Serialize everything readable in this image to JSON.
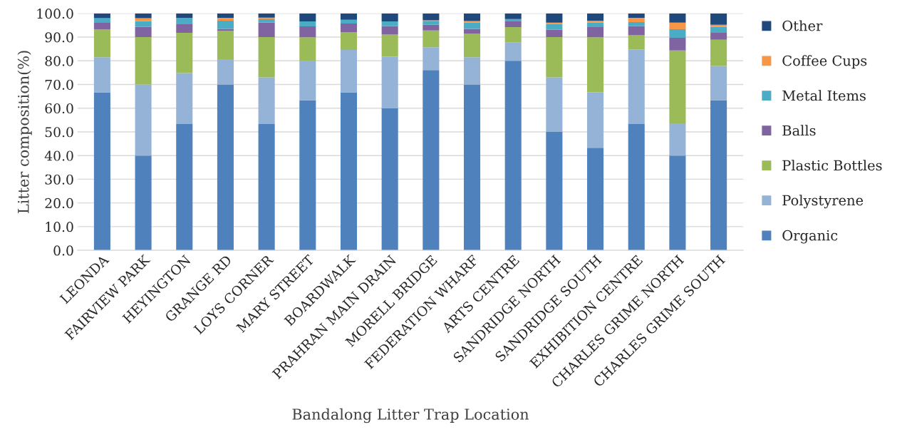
{
  "chart_data": {
    "type": "bar",
    "stacked": true,
    "xlabel": "Bandalong Litter Trap Location",
    "ylabel": "Litter composition(%)",
    "categories": [
      "LEONDA",
      "FAIRVIEW PARK",
      "HEYINGTON",
      "GRANGE RD",
      "LOYS CORNER",
      "MARY STREET",
      "BOARDWALK",
      "PRAHRAN MAIN DRAIN",
      "MORELL BRIDGE",
      "FEDERATION WHARF",
      "ARTS CENTRE",
      "SANDRIDGE NORTH",
      "SANDRIDGE SOUTH",
      "EXHIBITION CENTRE",
      "CHARLES GRIME NORTH",
      "CHARLES GRIME SOUTH"
    ],
    "series": [
      {
        "name": "Organic",
        "color": "#4f81bd",
        "values": [
          66.7,
          40,
          53.3,
          70,
          53.3,
          63.4,
          66.7,
          60,
          76.1,
          70,
          80,
          50,
          43.3,
          53.3,
          40,
          63.4
        ]
      },
      {
        "name": "Polystyrene",
        "color": "#95b3d7",
        "values": [
          14.8,
          30,
          21.5,
          10.7,
          19.7,
          16.7,
          17.9,
          21.7,
          9.6,
          11.5,
          7.7,
          23,
          23.4,
          31.5,
          13.6,
          14.4
        ]
      },
      {
        "name": "Plastic Bottles",
        "color": "#9bbb59",
        "values": [
          11.8,
          20,
          17,
          12,
          17,
          9.8,
          7.5,
          9.4,
          7.1,
          10,
          6.5,
          17,
          23.2,
          6,
          30.8,
          11.1
        ]
      },
      {
        "name": "Balls",
        "color": "#8064a2",
        "values": [
          2.7,
          4.3,
          3.6,
          0.8,
          6.1,
          4.6,
          3.6,
          3.6,
          2.4,
          2,
          2.4,
          3.2,
          4.3,
          3.9,
          5.3,
          2.9
        ]
      },
      {
        "name": "Metal Items",
        "color": "#4bacc6",
        "values": [
          2.0,
          2.4,
          2.7,
          3.4,
          1.4,
          2.1,
          1.6,
          1.9,
          1.4,
          2.6,
          1,
          2.3,
          1.9,
          1.6,
          3.6,
          2.6
        ]
      },
      {
        "name": "Coffee Cups",
        "color": "#f79646",
        "values": [
          0,
          1.3,
          0,
          1.2,
          0.7,
          0,
          0,
          0,
          0.5,
          0.7,
          0,
          0.6,
          0.8,
          1.8,
          2.8,
          0.8
        ]
      },
      {
        "name": "Other",
        "color": "#1f497d",
        "values": [
          2.0,
          2.0,
          1.9,
          1.9,
          1.8,
          3.4,
          2.7,
          3.4,
          2.9,
          3.2,
          2.4,
          3.9,
          3.1,
          1.9,
          3.9,
          4.8
        ]
      }
    ],
    "ylim": [
      0,
      100
    ],
    "yticks": [
      {
        "value": 0,
        "label": "0.0"
      },
      {
        "value": 10,
        "label": "10.0"
      },
      {
        "value": 20,
        "label": "20.0"
      },
      {
        "value": 30,
        "label": "30.0"
      },
      {
        "value": 40,
        "label": "40.0"
      },
      {
        "value": 50,
        "label": "50.0"
      },
      {
        "value": 60,
        "label": "60.0"
      },
      {
        "value": 70,
        "label": "70.0"
      },
      {
        "value": 80,
        "label": "80.0"
      },
      {
        "value": 90,
        "label": "90.0"
      },
      {
        "value": 100,
        "label": "100.0"
      }
    ],
    "grid": "y",
    "legend": "right"
  }
}
